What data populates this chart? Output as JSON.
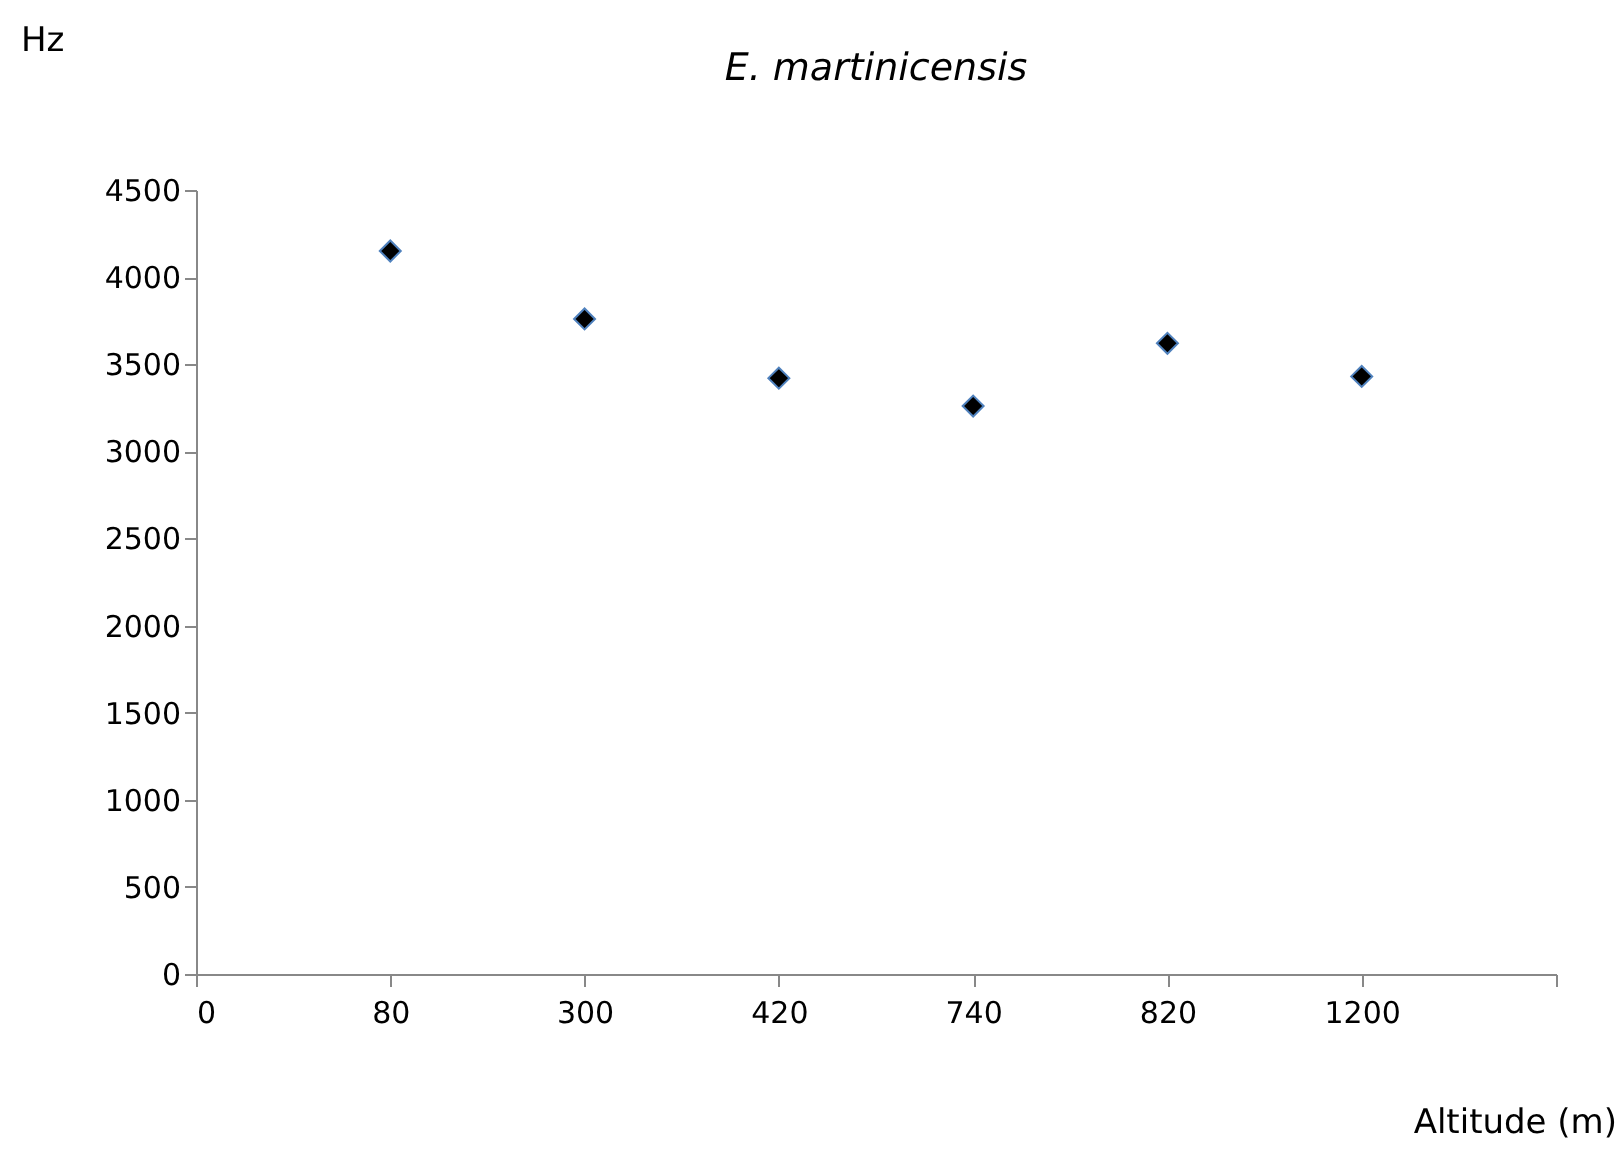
{
  "chart_data": {
    "type": "scatter",
    "title": "E. martinicensis",
    "ylabel": "Hz",
    "xlabel": "Altitude (m)",
    "categories": [
      "0",
      "80",
      "300",
      "420",
      "740",
      "820",
      "1200",
      null
    ],
    "series": [
      {
        "color": "#000000",
        "values": [
          null,
          4150,
          3760,
          3420,
          3260,
          3620,
          3430,
          null
        ]
      }
    ],
    "ylim": [
      0,
      4500
    ],
    "yticks": [
      0,
      500,
      1000,
      1500,
      2000,
      2500,
      3000,
      3500,
      4000,
      4500
    ],
    "marker": "diamond",
    "grid": false,
    "legend": false
  }
}
